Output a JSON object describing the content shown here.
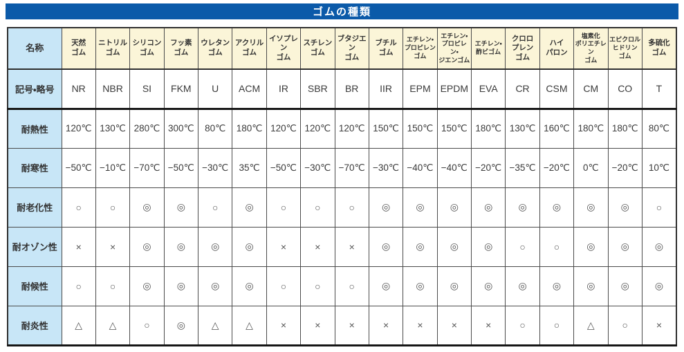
{
  "title": "ゴムの種類",
  "colors": {
    "title_bg": "#0b5aa9",
    "title_text": "#ffffff",
    "label_bg": "#c8e6f7",
    "header_bg": "#fbf5d8",
    "border": "#4a4a4a",
    "text": "#333333"
  },
  "table": {
    "corner_label": "名称",
    "columns": [
      "天然\nゴム",
      "ニトリル\nゴム",
      "シリコン\nゴム",
      "フッ素\nゴム",
      "ウレタン\nゴム",
      "アクリル\nゴム",
      "イソプレン\nゴム",
      "スチレン\nゴム",
      "ブタジエン\nゴム",
      "ブチル\nゴム",
      "エチレン・\nプロピレン\nゴム",
      "エチレン・\nプロピレン・\nジエンゴム",
      "エチレン・\n酢ビゴム",
      "クロロ\nプレン\nゴム",
      "ハイ\nパロン",
      "塩素化\nポリエチレン\nゴム",
      "エピクロル\nヒドリン\nゴム",
      "多硫化\nゴム"
    ],
    "rows": [
      {
        "label": "記号・略号",
        "values": [
          "NR",
          "NBR",
          "SI",
          "FKM",
          "U",
          "ACM",
          "IR",
          "SBR",
          "BR",
          "IIR",
          "EPM",
          "EPDM",
          "EVA",
          "CR",
          "CSM",
          "CM",
          "CO",
          "T"
        ]
      },
      {
        "label": "耐熱性",
        "values": [
          "120℃",
          "130℃",
          "280℃",
          "300℃",
          "80℃",
          "180℃",
          "120℃",
          "120℃",
          "120℃",
          "150℃",
          "150℃",
          "150℃",
          "180℃",
          "130℃",
          "160℃",
          "180℃",
          "180℃",
          "80℃"
        ]
      },
      {
        "label": "耐寒性",
        "values": [
          "−50℃",
          "−10℃",
          "−70℃",
          "−50℃",
          "−30℃",
          "35℃",
          "−50℃",
          "−30℃",
          "−70℃",
          "−30℃",
          "−40℃",
          "−40℃",
          "−20℃",
          "−35℃",
          "−20℃",
          "0℃",
          "−20℃",
          "10℃"
        ]
      },
      {
        "label": "耐老化性",
        "values": [
          "○",
          "○",
          "◎",
          "◎",
          "○",
          "◎",
          "○",
          "○",
          "○",
          "◎",
          "◎",
          "◎",
          "◎",
          "◎",
          "◎",
          "◎",
          "◎",
          "○"
        ]
      },
      {
        "label": "耐オゾン性",
        "values": [
          "×",
          "×",
          "◎",
          "◎",
          "◎",
          "◎",
          "×",
          "×",
          "×",
          "◎",
          "◎",
          "◎",
          "◎",
          "○",
          "○",
          "◎",
          "◎",
          "◎"
        ]
      },
      {
        "label": "耐候性",
        "values": [
          "○",
          "○",
          "◎",
          "◎",
          "◎",
          "◎",
          "○",
          "○",
          "○",
          "◎",
          "◎",
          "◎",
          "◎",
          "◎",
          "◎",
          "◎",
          "◎",
          "◎"
        ]
      },
      {
        "label": "耐炎性",
        "values": [
          "△",
          "△",
          "○",
          "◎",
          "△",
          "△",
          "×",
          "×",
          "×",
          "×",
          "×",
          "×",
          "×",
          "○",
          "○",
          "△",
          "○",
          "×"
        ]
      }
    ]
  }
}
